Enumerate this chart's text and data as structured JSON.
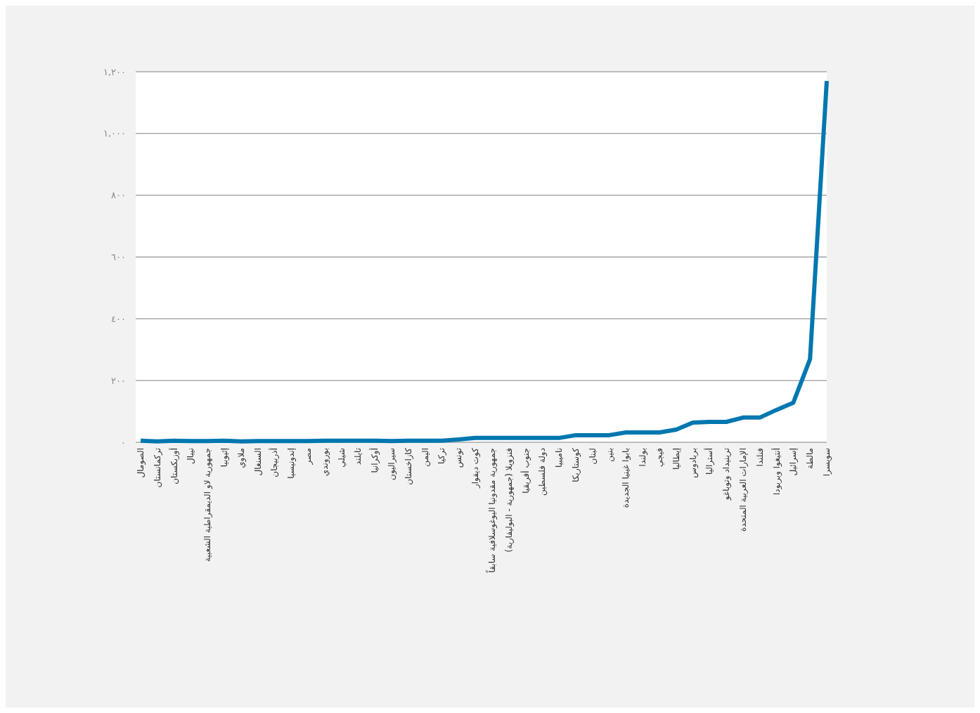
{
  "chart_data": {
    "type": "line",
    "categories": [
      "الصومال",
      "تركمانستان",
      "أوزبكستان",
      "نيبال",
      "جمهورية لاو الديمقراطية الشعبية",
      "إثيوبيا",
      "ملاوي",
      "السنغال",
      "أذربيجان",
      "إندونيسيا",
      "مصر",
      "بوروندي",
      "شيلي",
      "تايلند",
      "أوكرانيا",
      "سيراليون",
      "كازاخستان",
      "اليمن",
      "تركيا",
      "تونس",
      "كوت ديفوار",
      "جمهورية مقدونيا اليوغوسلافية سابقاً",
      "فنزويلا (جمهورية - البوليفارية)",
      "جنوب أفريقيا",
      "دولة فلسطين",
      "ناميبيا",
      "كوستاريكا",
      "لبنان",
      "بنين",
      "بابوا غينيا الجديدة",
      "بولندا",
      "فيجي",
      "إيطاليا",
      "بربادوس",
      "أستراليا",
      "ترينيداد وتوباغو",
      "الإمارات العربية المتحدة",
      "فنلندا",
      "أنتيغوا وبربودا",
      "إسرائيل",
      "مالطة",
      "سويسرا"
    ],
    "series": [
      {
        "color": "#0077b0",
        "values": [
          5,
          3,
          5,
          4,
          4,
          5,
          3,
          4,
          4,
          4,
          4,
          5,
          5,
          5,
          5,
          4,
          5,
          5,
          5,
          9,
          14,
          14,
          14,
          14,
          14,
          14,
          23,
          23,
          23,
          32,
          32,
          32,
          41,
          64,
          66,
          66,
          80,
          80,
          105,
          128,
          269,
          1170
        ]
      }
    ],
    "ylim": [
      0,
      1200
    ],
    "yticks": [
      {
        "value": 0,
        "label": "٠"
      },
      {
        "value": 200,
        "label": "٢٠٠"
      },
      {
        "value": 400,
        "label": "٤٠٠"
      },
      {
        "value": 600,
        "label": "٦٠٠"
      },
      {
        "value": 800,
        "label": "٨٠٠"
      },
      {
        "value": 1000,
        "label": "١,٠٠٠"
      },
      {
        "value": 1200,
        "label": "١,٢٠٠"
      }
    ],
    "grid": "y",
    "marker": "none",
    "line_style": "solid"
  }
}
